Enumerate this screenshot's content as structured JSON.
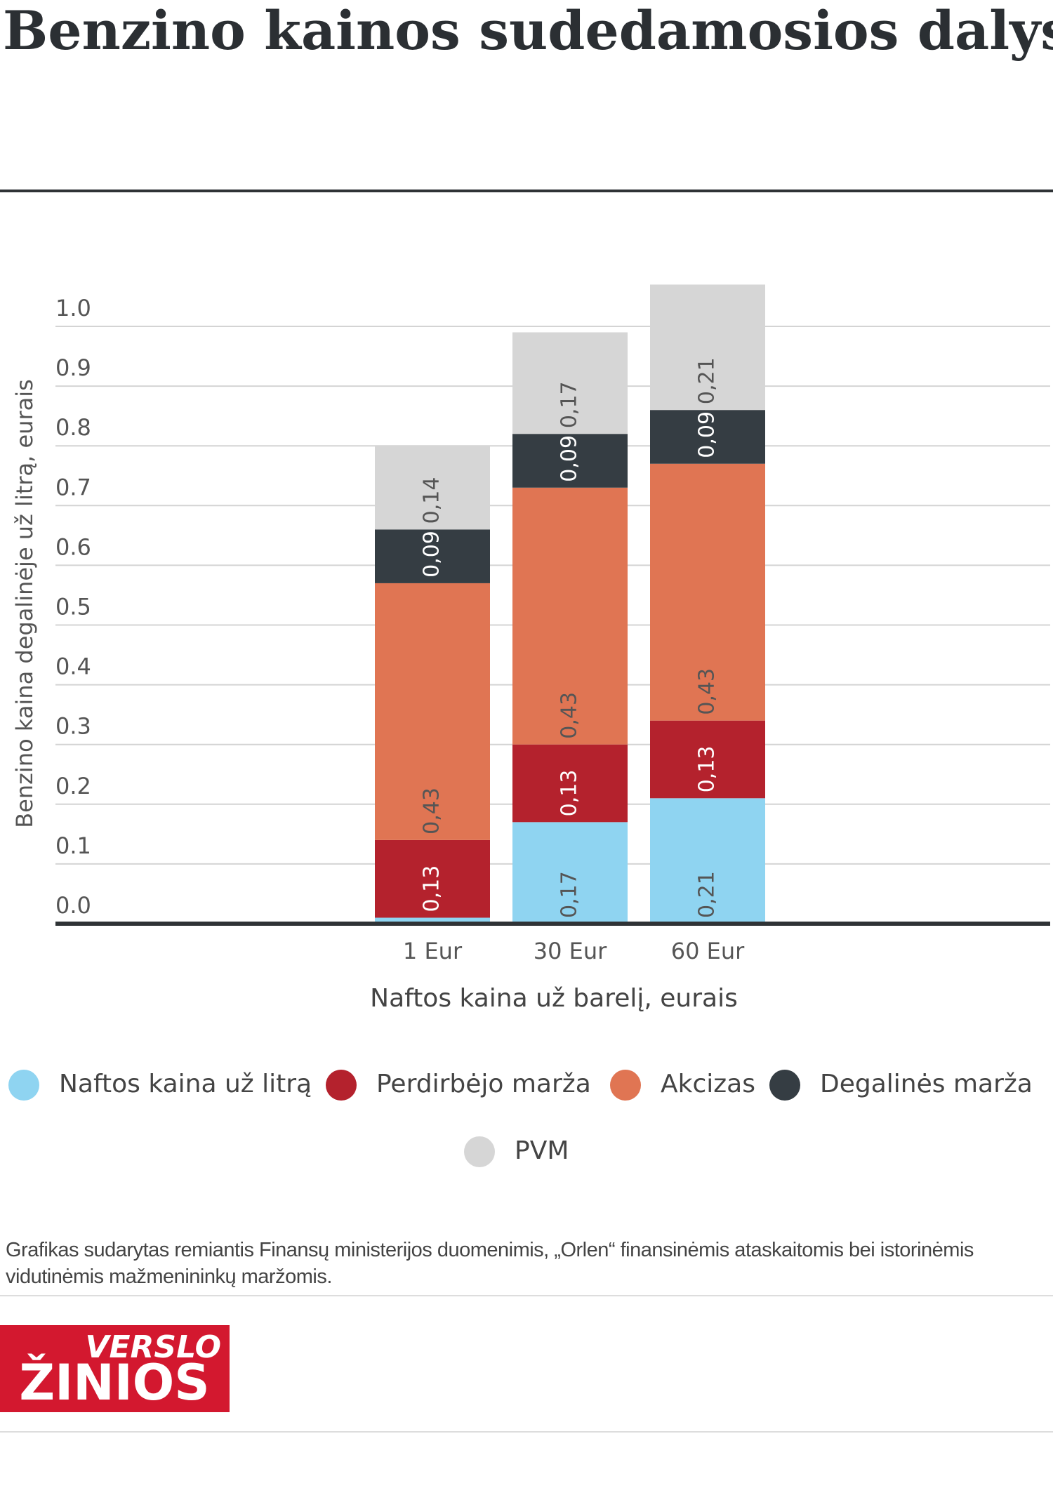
{
  "chart_data": {
    "type": "stacked_bar",
    "title": "Benzino kainos sudedamosios dalys",
    "y_label": "Benzino kaina degalinėje už litrą, eurais",
    "x_label": "Naftos kaina už barelį, eurais",
    "categories": [
      "1 Eur",
      "30 Eur",
      "60 Eur"
    ],
    "series": [
      {
        "name": "Naftos kaina už litrą",
        "color": "#8fd4f1",
        "values": [
          0.01,
          0.17,
          0.21
        ],
        "value_labels": [
          null,
          "0,17",
          "0,21"
        ]
      },
      {
        "name": "Perdirbėjo marža",
        "color": "#b4222d",
        "values": [
          0.13,
          0.13,
          0.13
        ],
        "value_labels": [
          "0,13",
          "0,13",
          "0,13"
        ]
      },
      {
        "name": "Akcizas",
        "color": "#e07553",
        "values": [
          0.43,
          0.43,
          0.43
        ],
        "value_labels": [
          "0,43",
          "0,43",
          "0,43"
        ]
      },
      {
        "name": "Degalinės marža",
        "color": "#353d43",
        "values": [
          0.09,
          0.09,
          0.09
        ],
        "value_labels": [
          "0,09",
          "0,09",
          "0,09"
        ]
      },
      {
        "name": "PVM",
        "color": "#d6d6d6",
        "values": [
          0.14,
          0.17,
          0.21
        ],
        "value_labels": [
          "0,14",
          "0,17",
          "0,21"
        ]
      }
    ],
    "ylim": [
      0,
      1.07
    ],
    "yticks": [
      {
        "value": 0,
        "label": "0.0"
      },
      0.1,
      0.2,
      0.3,
      0.4,
      0.5,
      0.6,
      0.7,
      0.8,
      0.9,
      {
        "value": 1,
        "label": "1.0"
      }
    ],
    "grid": true,
    "note": "Grafikas sudarytas remiantis Finansų ministerijos duomenimis, „Orlen“ finansinėmis ataskaitomis bei istorinėmis vidutinėmis mažmenininkų maržomis.",
    "logo": [
      "VERSLO",
      "ŽINIOS"
    ]
  }
}
